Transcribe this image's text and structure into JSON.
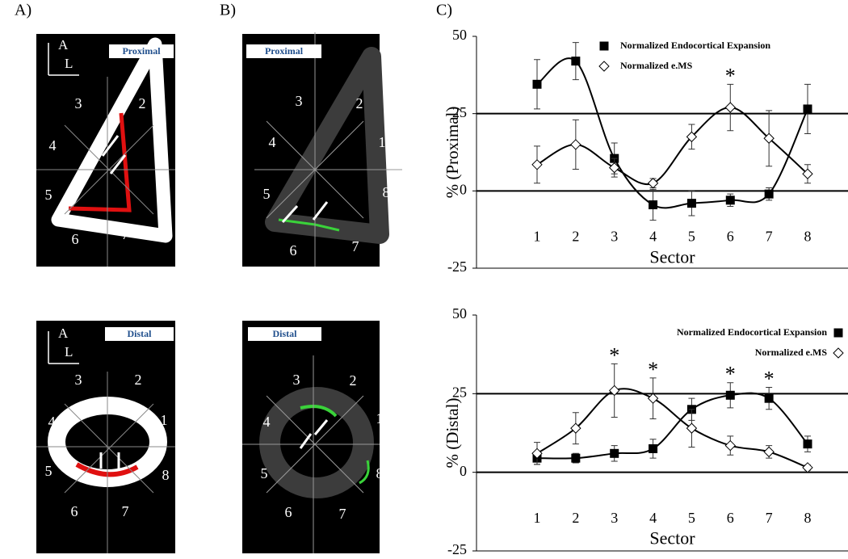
{
  "panel_labels": [
    "A)",
    "B)",
    "C)"
  ],
  "images": [
    {
      "label": "Proximal",
      "axes": [
        "A",
        "L"
      ],
      "sectors": [
        "1",
        "2",
        "3",
        "4",
        "5",
        "6",
        "7",
        "8"
      ]
    },
    {
      "label": "Proximal",
      "sectors": [
        "1",
        "2",
        "3",
        "4",
        "5",
        "6",
        "7",
        "8"
      ]
    },
    {
      "label": "Distal",
      "axes": [
        "A",
        "L"
      ],
      "sectors": [
        "1",
        "2",
        "3",
        "4",
        "5",
        "6",
        "7",
        "8"
      ]
    },
    {
      "label": "Distal",
      "sectors": [
        "1",
        "2",
        "3",
        "4",
        "5",
        "6",
        "7",
        "8"
      ]
    }
  ],
  "chart_data": [
    {
      "type": "line",
      "x_label": "Sector",
      "y_label": "% (Proximal)",
      "categories": [
        "1",
        "2",
        "3",
        "4",
        "5",
        "6",
        "7",
        "8"
      ],
      "ylim": [
        -25,
        50
      ],
      "yticks": [
        -25,
        0,
        25,
        50
      ],
      "reference_lines": [
        0,
        25
      ],
      "legend": "upper right",
      "legend_marker_side": "left",
      "series": [
        {
          "name": "Normalized Endocortical Expansion",
          "color": "#000000",
          "marker": "square",
          "marker_fill": "#000000",
          "values": [
            34.5,
            42,
            10.5,
            -4.5,
            -4,
            -3,
            -1,
            26.5
          ],
          "errors": [
            8,
            6,
            5,
            5,
            4,
            2,
            2,
            8
          ]
        },
        {
          "name": "Normalized e.MS",
          "color": "#000000",
          "marker": "diamond",
          "marker_fill": "#ffffff",
          "values": [
            8.5,
            15,
            7.5,
            2.5,
            17.5,
            27,
            17,
            5.5
          ],
          "errors": [
            6,
            8,
            3,
            1.5,
            4,
            7.5,
            9,
            3
          ]
        }
      ],
      "annotations": [
        {
          "text": "*",
          "x": "6"
        }
      ]
    },
    {
      "type": "line",
      "x_label": "Sector",
      "y_label": "% (Distal)",
      "categories": [
        "1",
        "2",
        "3",
        "4",
        "5",
        "6",
        "7",
        "8"
      ],
      "ylim": [
        -25,
        50
      ],
      "yticks": [
        -25,
        0,
        25,
        50
      ],
      "reference_lines": [
        0,
        25
      ],
      "legend": "upper right",
      "legend_marker_side": "right",
      "series": [
        {
          "name": "Normalized Endocortical Expansion",
          "color": "#000000",
          "marker": "square",
          "marker_fill": "#000000",
          "values": [
            4.5,
            4.5,
            6,
            7.5,
            20,
            24.5,
            23.5,
            9
          ],
          "errors": [
            2,
            1.5,
            2.5,
            3,
            3.5,
            4,
            3.5,
            2.5
          ]
        },
        {
          "name": "Normalized e.MS",
          "color": "#000000",
          "marker": "diamond",
          "marker_fill": "#ffffff",
          "values": [
            6,
            14,
            26,
            23.5,
            14,
            8.5,
            6.5,
            1.5
          ],
          "errors": [
            3.5,
            5,
            8.5,
            6.5,
            6,
            3,
            2,
            0.8
          ]
        }
      ],
      "annotations": [
        {
          "text": "*",
          "x": "3"
        },
        {
          "text": "*",
          "x": "4"
        },
        {
          "text": "*",
          "x": "6"
        },
        {
          "text": "*",
          "x": "7"
        }
      ]
    }
  ]
}
